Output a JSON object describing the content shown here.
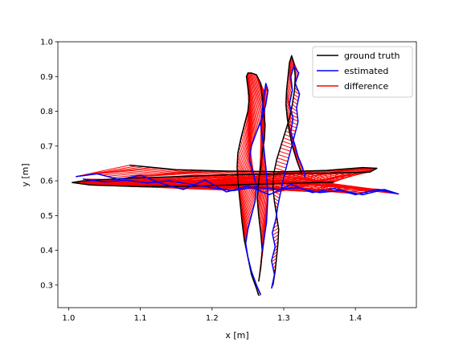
{
  "chart_data": {
    "type": "line",
    "title": "",
    "xlabel": "x [m]",
    "ylabel": "y [m]",
    "xlim": [
      0.985,
      1.485
    ],
    "ylim": [
      0.235,
      1.0
    ],
    "xticks": [
      1.0,
      1.1,
      1.2,
      1.3,
      1.4
    ],
    "xtick_labels": [
      "1.0",
      "1.1",
      "1.2",
      "1.3",
      "1.4"
    ],
    "yticks": [
      0.3,
      0.4,
      0.5,
      0.6,
      0.7,
      0.8,
      0.9,
      1.0
    ],
    "ytick_labels": [
      "0.3",
      "0.4",
      "0.5",
      "0.6",
      "0.7",
      "0.8",
      "0.9",
      "1.0"
    ],
    "grid": false,
    "legend_position": "top-right",
    "series": [
      {
        "name": "ground truth",
        "color": "#000000",
        "segments": [
          {
            "x": [
              1.085,
              1.15,
              1.22,
              1.3,
              1.36,
              1.41,
              1.43,
              1.42,
              1.36,
              1.3,
              1.22,
              1.15,
              1.08,
              1.02,
              1.005,
              1.03,
              1.1,
              1.18,
              1.26,
              1.33,
              1.37
            ],
            "y": [
              0.645,
              0.632,
              0.628,
              0.626,
              0.63,
              0.638,
              0.636,
              0.625,
              0.622,
              0.62,
              0.617,
              0.612,
              0.607,
              0.6,
              0.595,
              0.588,
              0.583,
              0.585,
              0.59,
              0.594,
              0.596
            ]
          },
          {
            "x": [
              1.265,
              1.262,
              1.255,
              1.25,
              1.245,
              1.242,
              1.24,
              1.238,
              1.236,
              1.235,
              1.236,
              1.24,
              1.245,
              1.25,
              1.252,
              1.25,
              1.248,
              1.25,
              1.255,
              1.262,
              1.268,
              1.27,
              1.272,
              1.274,
              1.273,
              1.27,
              1.268,
              1.265,
              1.263,
              1.265,
              1.268,
              1.27,
              1.268,
              1.265
            ],
            "y": [
              0.27,
              0.29,
              0.33,
              0.38,
              0.43,
              0.48,
              0.52,
              0.56,
              0.6,
              0.64,
              0.68,
              0.72,
              0.76,
              0.8,
              0.84,
              0.87,
              0.9,
              0.91,
              0.91,
              0.905,
              0.88,
              0.84,
              0.8,
              0.76,
              0.72,
              0.68,
              0.64,
              0.6,
              0.55,
              0.5,
              0.45,
              0.4,
              0.35,
              0.31
            ]
          },
          {
            "x": [
              1.285,
              1.288,
              1.29,
              1.292,
              1.293,
              1.29,
              1.287,
              1.285,
              1.286,
              1.29,
              1.296,
              1.302,
              1.308,
              1.312,
              1.315,
              1.316,
              1.314,
              1.311,
              1.308,
              1.306,
              1.304,
              1.303,
              1.305,
              1.308,
              1.312,
              1.318,
              1.325
            ],
            "y": [
              0.3,
              0.34,
              0.38,
              0.42,
              0.46,
              0.5,
              0.54,
              0.58,
              0.62,
              0.66,
              0.7,
              0.74,
              0.78,
              0.82,
              0.86,
              0.9,
              0.94,
              0.96,
              0.94,
              0.9,
              0.86,
              0.82,
              0.78,
              0.74,
              0.7,
              0.66,
              0.62
            ]
          }
        ]
      },
      {
        "name": "estimated",
        "color": "#0000ff",
        "segments": [
          {
            "x": [
              1.01,
              1.04,
              1.07,
              1.1,
              1.13,
              1.16,
              1.19,
              1.22,
              1.25,
              1.28,
              1.31,
              1.34,
              1.37,
              1.4,
              1.43,
              1.46,
              1.44,
              1.41,
              1.38,
              1.35,
              1.32,
              1.29,
              1.26,
              1.23,
              1.2,
              1.17,
              1.14,
              1.11,
              1.08,
              1.05,
              1.02
            ],
            "y": [
              0.612,
              0.62,
              0.604,
              0.616,
              0.592,
              0.575,
              0.602,
              0.568,
              0.585,
              0.56,
              0.59,
              0.566,
              0.578,
              0.56,
              0.575,
              0.562,
              0.575,
              0.56,
              0.572,
              0.566,
              0.58,
              0.575,
              0.582,
              0.572,
              0.58,
              0.59,
              0.6,
              0.594,
              0.602,
              0.597,
              0.605
            ]
          },
          {
            "x": [
              1.268,
              1.262,
              1.255,
              1.25,
              1.247,
              1.25,
              1.255,
              1.26,
              1.262,
              1.258,
              1.252,
              1.255,
              1.262,
              1.27,
              1.275,
              1.278,
              1.275,
              1.272,
              1.27,
              1.268,
              1.272,
              1.275,
              1.278,
              1.276,
              1.27
            ],
            "y": [
              0.272,
              0.3,
              0.34,
              0.38,
              0.42,
              0.46,
              0.5,
              0.54,
              0.58,
              0.62,
              0.66,
              0.7,
              0.74,
              0.78,
              0.82,
              0.86,
              0.88,
              0.84,
              0.8,
              0.76,
              0.7,
              0.64,
              0.56,
              0.48,
              0.4
            ]
          },
          {
            "x": [
              1.283,
              1.287,
              1.283,
              1.288,
              1.284,
              1.289,
              1.292,
              1.296,
              1.3,
              1.305,
              1.31,
              1.315,
              1.32,
              1.318,
              1.322,
              1.316,
              1.321,
              1.314,
              1.31,
              1.312,
              1.308,
              1.313,
              1.31,
              1.316,
              1.32,
              1.326,
              1.33
            ],
            "y": [
              0.29,
              0.33,
              0.37,
              0.41,
              0.45,
              0.49,
              0.53,
              0.57,
              0.61,
              0.65,
              0.69,
              0.73,
              0.77,
              0.81,
              0.85,
              0.88,
              0.91,
              0.93,
              0.9,
              0.86,
              0.82,
              0.78,
              0.74,
              0.7,
              0.67,
              0.64,
              0.61
            ]
          }
        ]
      },
      {
        "name": "difference",
        "color": "#ff0000",
        "segments": []
      }
    ]
  }
}
